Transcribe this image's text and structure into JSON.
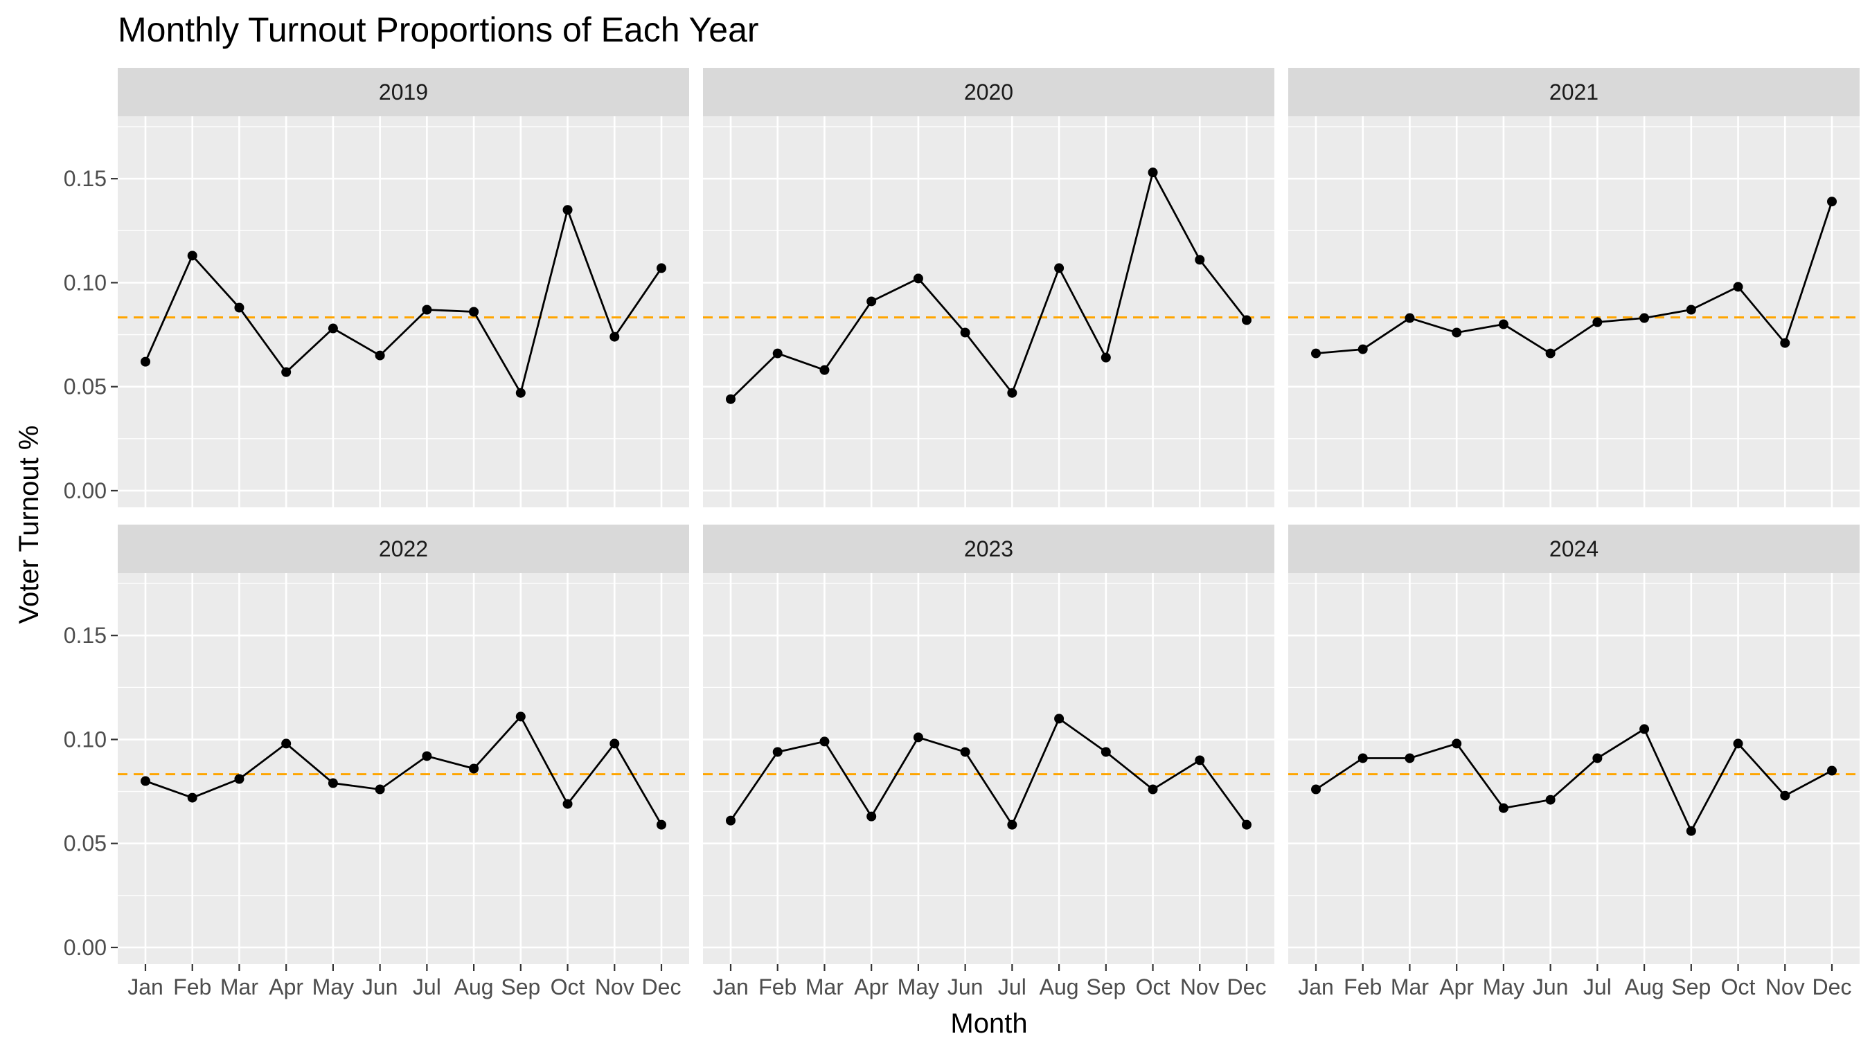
{
  "chart_data": {
    "type": "line",
    "title": "Monthly Turnout Proportions of Each Year",
    "xlabel": "Month",
    "ylabel": "Voter Turnout %",
    "ylim": [
      -0.008,
      0.18
    ],
    "yticks": [
      0.0,
      0.05,
      0.1,
      0.15
    ],
    "ytick_labels": [
      "0.00",
      "0.05",
      "0.10",
      "0.15"
    ],
    "categories": [
      "Jan",
      "Feb",
      "Mar",
      "Apr",
      "May",
      "Jun",
      "Jul",
      "Aug",
      "Sep",
      "Oct",
      "Nov",
      "Dec"
    ],
    "reference_line": {
      "y": 0.0833,
      "color": "#ffa500",
      "style": "dashed"
    },
    "grid": true,
    "facets": [
      {
        "name": "2019",
        "values": [
          0.062,
          0.113,
          0.088,
          0.057,
          0.078,
          0.065,
          0.087,
          0.086,
          0.047,
          0.135,
          0.074,
          0.107
        ]
      },
      {
        "name": "2020",
        "values": [
          0.044,
          0.066,
          0.058,
          0.091,
          0.102,
          0.076,
          0.047,
          0.107,
          0.064,
          0.153,
          0.111,
          0.082
        ]
      },
      {
        "name": "2021",
        "values": [
          0.066,
          0.068,
          0.083,
          0.076,
          0.08,
          0.066,
          0.081,
          0.083,
          0.087,
          0.098,
          0.071,
          0.139
        ]
      },
      {
        "name": "2022",
        "values": [
          0.08,
          0.072,
          0.081,
          0.098,
          0.079,
          0.076,
          0.092,
          0.086,
          0.111,
          0.069,
          0.098,
          0.059
        ]
      },
      {
        "name": "2023",
        "values": [
          0.061,
          0.094,
          0.099,
          0.063,
          0.101,
          0.094,
          0.059,
          0.11,
          0.094,
          0.076,
          0.09,
          0.059
        ]
      },
      {
        "name": "2024",
        "values": [
          0.076,
          0.091,
          0.091,
          0.098,
          0.067,
          0.071,
          0.091,
          0.105,
          0.056,
          0.098,
          0.073,
          0.085
        ]
      }
    ]
  }
}
